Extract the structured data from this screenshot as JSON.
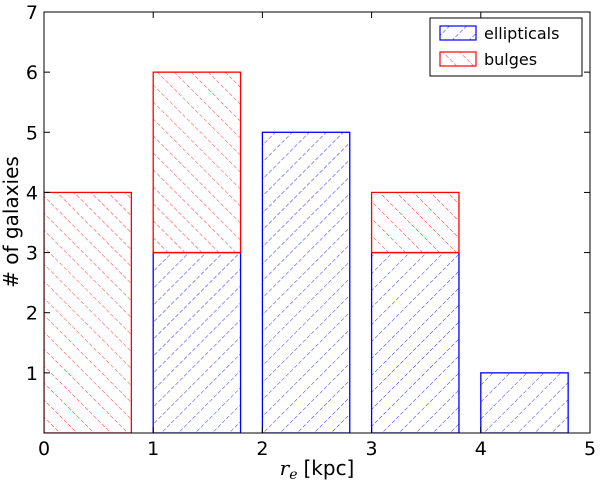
{
  "chart_data": {
    "type": "bar",
    "stacked": true,
    "x_ticks": [
      0,
      1,
      2,
      3,
      4,
      5
    ],
    "y_ticks": [
      1,
      2,
      3,
      4,
      5,
      6,
      7
    ],
    "xlim": [
      0,
      5
    ],
    "ylim": [
      0,
      7
    ],
    "x_symbol": "r",
    "x_subscript": "e",
    "x_unit": "[kpc]",
    "ylabel": "# of galaxies",
    "bar_width": 0.8,
    "bin_starts": [
      0,
      1,
      2,
      3,
      4
    ],
    "series": [
      {
        "name": "ellipticals",
        "color": "#0000ff",
        "hatch": "forward",
        "values": [
          0,
          3,
          5,
          3,
          1
        ]
      },
      {
        "name": "bulges",
        "color": "#ff0000",
        "hatch": "back",
        "values": [
          4,
          3,
          0,
          1,
          0
        ]
      }
    ],
    "legend_position": "top-right",
    "grid": false
  }
}
